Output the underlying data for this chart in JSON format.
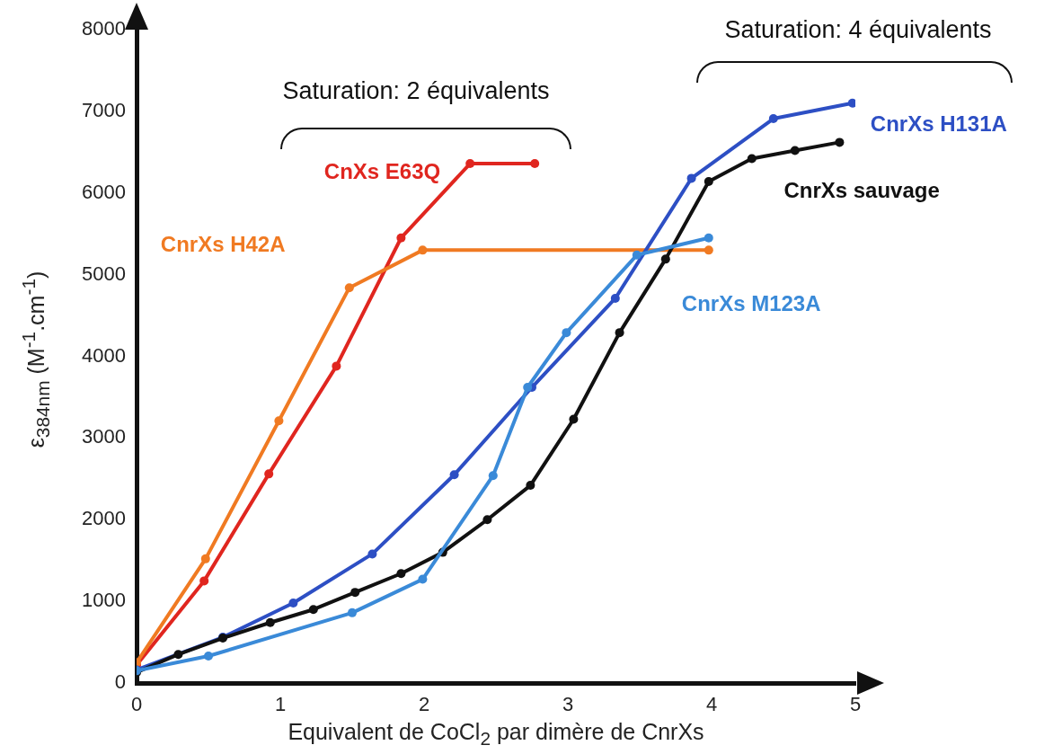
{
  "chart_data": {
    "type": "line",
    "xlabel": "Equivalent de CoCl$_{2}$ par dimère de CnrXs",
    "ylabel": "ε$_{384nm}$ (M$^{-1}$.cm$^{-1}$)",
    "xlim": [
      0,
      5
    ],
    "xticks": [
      0,
      1,
      2,
      3,
      4,
      5
    ],
    "ylim": [
      0,
      8000
    ],
    "yticks": [
      0,
      1000,
      2000,
      3000,
      4000,
      5000,
      6000,
      7000,
      8000
    ],
    "grid": false,
    "legend": false,
    "marker": "circle",
    "line_style": "solid",
    "annotations": [
      "Saturation: 2 équivalents",
      "Saturation: 4 équivalents"
    ],
    "series": [
      {
        "name": "CnXs E63Q",
        "color": "#e0261f",
        "x": [
          0,
          0.47,
          0.92,
          1.39,
          1.84,
          2.32,
          2.77
        ],
        "values": [
          220,
          1250,
          2560,
          3880,
          5450,
          6360,
          6360
        ]
      },
      {
        "name": "CnrXs H42A",
        "color": "#f07a22",
        "x": [
          0,
          0.48,
          0.99,
          1.48,
          1.99,
          3.98
        ],
        "values": [
          250,
          1520,
          3210,
          4840,
          5300,
          5300
        ]
      },
      {
        "name": "CnrXs H131A",
        "color": "#2d4fc4",
        "x": [
          0,
          0.6,
          1.09,
          1.64,
          2.21,
          2.75,
          3.33,
          3.86,
          4.43,
          4.98
        ],
        "values": [
          160,
          560,
          980,
          1580,
          2550,
          3620,
          4710,
          6180,
          6910,
          7100
        ]
      },
      {
        "name": "CnrXs sauvage",
        "color": "#111111",
        "x": [
          0,
          0.29,
          0.6,
          0.93,
          1.23,
          1.52,
          1.84,
          2.13,
          2.44,
          2.74,
          3.04,
          3.36,
          3.68,
          3.98,
          4.28,
          4.58,
          4.89
        ],
        "values": [
          130,
          350,
          550,
          740,
          900,
          1110,
          1340,
          1600,
          2000,
          2420,
          3230,
          4290,
          5190,
          6140,
          6420,
          6520,
          6620
        ]
      },
      {
        "name": "CnrXs M123A",
        "color": "#3a8ad8",
        "x": [
          0,
          0.5,
          1.5,
          1.99,
          2.48,
          2.72,
          2.99,
          3.48,
          3.98
        ],
        "values": [
          150,
          330,
          860,
          1270,
          2540,
          3620,
          4290,
          5240,
          5450
        ]
      }
    ]
  }
}
